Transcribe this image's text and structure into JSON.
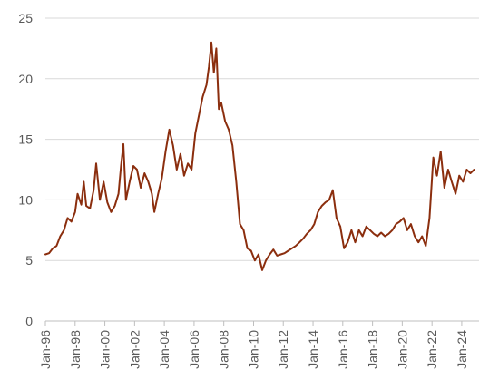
{
  "chart_data": {
    "type": "line",
    "title": "",
    "xlabel": "",
    "ylabel": "",
    "ylim": [
      0,
      25
    ],
    "yticks": [
      "0",
      "5",
      "10",
      "15",
      "20",
      "25"
    ],
    "xticks": [
      "Jan-96",
      "Jan-98",
      "Jan-00",
      "Jan-02",
      "Jan-04",
      "Jan-06",
      "Jan-08",
      "Jan-10",
      "Jan-12",
      "Jan-14",
      "Jan-16",
      "Jan-18",
      "Jan-20",
      "Jan-22",
      "Jan-24"
    ],
    "grid": "horizontal",
    "legend": "none",
    "colors": {
      "line": "#8B2E0E",
      "grid": "#d9d9d9",
      "text": "#595959"
    },
    "series": [
      {
        "x": [
          "1996-01",
          "1996-04",
          "1996-07",
          "1996-10",
          "1997-01",
          "1997-04",
          "1997-07",
          "1997-10",
          "1998-01",
          "1998-03",
          "1998-06",
          "1998-08",
          "1998-10",
          "1999-01",
          "1999-04",
          "1999-06",
          "1999-09",
          "1999-12",
          "2000-03",
          "2000-06",
          "2000-09",
          "2000-12",
          "2001-02",
          "2001-04",
          "2001-06",
          "2001-09",
          "2001-12",
          "2002-03",
          "2002-06",
          "2002-09",
          "2002-12",
          "2003-03",
          "2003-05",
          "2003-08",
          "2003-11",
          "2004-02",
          "2004-05",
          "2004-08",
          "2004-11",
          "2005-02",
          "2005-05",
          "2005-08",
          "2005-11",
          "2006-02",
          "2006-05",
          "2006-08",
          "2006-11",
          "2007-01",
          "2007-03",
          "2007-05",
          "2007-07",
          "2007-09",
          "2007-11",
          "2008-02",
          "2008-05",
          "2008-08",
          "2008-11",
          "2009-02",
          "2009-05",
          "2009-08",
          "2009-11",
          "2010-02",
          "2010-05",
          "2010-08",
          "2010-11",
          "2011-02",
          "2011-05",
          "2011-08",
          "2011-11",
          "2012-02",
          "2012-05",
          "2012-08",
          "2012-11",
          "2013-02",
          "2013-05",
          "2013-08",
          "2013-11",
          "2014-02",
          "2014-05",
          "2014-08",
          "2014-11",
          "2015-02",
          "2015-05",
          "2015-08",
          "2015-11",
          "2016-02",
          "2016-05",
          "2016-08",
          "2016-11",
          "2017-02",
          "2017-05",
          "2017-08",
          "2017-11",
          "2018-02",
          "2018-05",
          "2018-08",
          "2018-11",
          "2019-02",
          "2019-05",
          "2019-08",
          "2019-11",
          "2020-02",
          "2020-05",
          "2020-08",
          "2020-11",
          "2021-02",
          "2021-05",
          "2021-08",
          "2021-11",
          "2022-02",
          "2022-05",
          "2022-08",
          "2022-11",
          "2023-02",
          "2023-05",
          "2023-08",
          "2023-11",
          "2024-02",
          "2024-05",
          "2024-08",
          "2024-11"
        ],
        "y": [
          5.5,
          5.6,
          6.0,
          6.2,
          7.0,
          7.5,
          8.5,
          8.2,
          9.0,
          10.5,
          9.6,
          11.5,
          9.5,
          9.3,
          10.8,
          13.0,
          10.0,
          11.5,
          9.8,
          9.0,
          9.5,
          10.5,
          12.8,
          14.6,
          10.0,
          11.5,
          12.8,
          12.5,
          11.0,
          12.2,
          11.5,
          10.5,
          9.0,
          10.5,
          11.8,
          14.0,
          15.8,
          14.5,
          12.5,
          13.8,
          12.0,
          13.0,
          12.5,
          15.5,
          17.0,
          18.5,
          19.5,
          21.0,
          23.0,
          20.5,
          22.5,
          17.5,
          18.0,
          16.5,
          15.8,
          14.5,
          11.5,
          8.0,
          7.5,
          6.0,
          5.8,
          5.0,
          5.5,
          4.2,
          5.0,
          5.5,
          5.9,
          5.4,
          5.5,
          5.6,
          5.8,
          6.0,
          6.2,
          6.5,
          6.8,
          7.2,
          7.5,
          8.0,
          9.0,
          9.5,
          9.8,
          10.0,
          10.8,
          8.5,
          7.8,
          6.0,
          6.5,
          7.5,
          6.5,
          7.5,
          7.0,
          7.8,
          7.5,
          7.2,
          7.0,
          7.3,
          7.0,
          7.2,
          7.5,
          8.0,
          8.2,
          8.5,
          7.5,
          8.0,
          7.0,
          6.5,
          7.0,
          6.2,
          8.5,
          13.5,
          12.0,
          14.0,
          11.0,
          12.5,
          11.5,
          10.5,
          12.0,
          11.5,
          12.5,
          12.2,
          12.5
        ]
      }
    ]
  }
}
